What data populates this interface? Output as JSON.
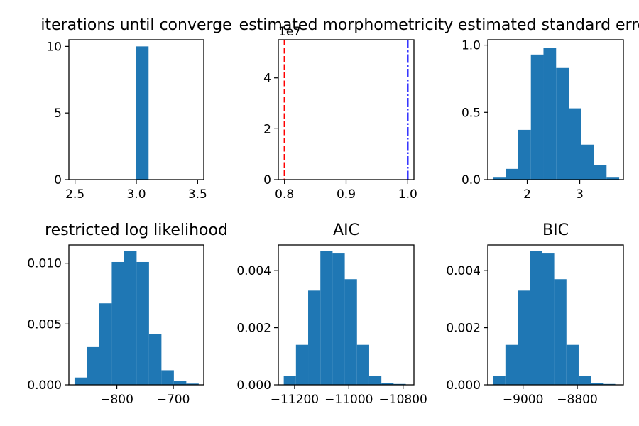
{
  "chart_data": [
    {
      "type": "histogram",
      "title": "iterations until converge",
      "xlim": [
        2.45,
        3.55
      ],
      "ylim": [
        0,
        10.5
      ],
      "xticks": [
        2.5,
        3.0,
        3.5
      ],
      "xtick_labels": [
        "2.5",
        "3.0",
        "3.5"
      ],
      "yticks": [
        0,
        5,
        10
      ],
      "ytick_labels": [
        "0",
        "5",
        "10"
      ],
      "bins": [
        {
          "x0": 3.0,
          "x1": 3.1,
          "value": 10
        }
      ],
      "colors": {
        "bars": "#1f77b4"
      }
    },
    {
      "type": "histogram",
      "title": "estimated morphometricity",
      "xlim": [
        0.79,
        1.01
      ],
      "ylim": [
        0,
        5.5
      ],
      "xticks": [
        0.8,
        0.9,
        1.0
      ],
      "xtick_labels": [
        "0.8",
        "0.9",
        "1.0"
      ],
      "yticks": [
        0,
        2,
        4
      ],
      "ytick_labels": [
        "0",
        "2",
        "4"
      ],
      "y_offset_label": "1e7",
      "bins": [],
      "vlines": [
        {
          "x": 0.8,
          "style": "dashed",
          "color": "#ff0000"
        },
        {
          "x": 1.0,
          "style": "dashdot",
          "color": "#0000ff"
        }
      ]
    },
    {
      "type": "histogram",
      "title": "estimated standard error",
      "xlim": [
        1.25,
        3.83
      ],
      "ylim": [
        0,
        1.04
      ],
      "xticks": [
        2,
        3
      ],
      "xtick_labels": [
        "2",
        "3"
      ],
      "yticks": [
        0.0,
        0.5,
        1.0
      ],
      "ytick_labels": [
        "0.0",
        "0.5",
        "1.0"
      ],
      "bins": [
        {
          "x0": 1.35,
          "x1": 1.59,
          "value": 0.02
        },
        {
          "x0": 1.59,
          "x1": 1.83,
          "value": 0.08
        },
        {
          "x0": 1.83,
          "x1": 2.07,
          "value": 0.37
        },
        {
          "x0": 2.07,
          "x1": 2.31,
          "value": 0.93
        },
        {
          "x0": 2.31,
          "x1": 2.55,
          "value": 0.98
        },
        {
          "x0": 2.55,
          "x1": 2.79,
          "value": 0.83
        },
        {
          "x0": 2.79,
          "x1": 3.03,
          "value": 0.53
        },
        {
          "x0": 3.03,
          "x1": 3.27,
          "value": 0.26
        },
        {
          "x0": 3.27,
          "x1": 3.51,
          "value": 0.11
        },
        {
          "x0": 3.51,
          "x1": 3.75,
          "value": 0.02
        }
      ],
      "colors": {
        "bars": "#1f77b4"
      }
    },
    {
      "type": "histogram",
      "title": "restricted log likelihood",
      "xlim": [
        -885,
        -646
      ],
      "ylim": [
        0,
        0.0115
      ],
      "xticks": [
        -800,
        -700
      ],
      "xtick_labels": [
        "−800",
        "−700"
      ],
      "yticks": [
        0.0,
        0.005,
        0.01
      ],
      "ytick_labels": [
        "0.000",
        "0.005",
        "0.010"
      ],
      "bins": [
        {
          "x0": -875,
          "x1": -853,
          "value": 0.0006
        },
        {
          "x0": -853,
          "x1": -831,
          "value": 0.0031
        },
        {
          "x0": -831,
          "x1": -809,
          "value": 0.0067
        },
        {
          "x0": -809,
          "x1": -787,
          "value": 0.0101
        },
        {
          "x0": -787,
          "x1": -765,
          "value": 0.011
        },
        {
          "x0": -765,
          "x1": -743,
          "value": 0.0101
        },
        {
          "x0": -743,
          "x1": -721,
          "value": 0.0042
        },
        {
          "x0": -721,
          "x1": -699,
          "value": 0.0012
        },
        {
          "x0": -699,
          "x1": -677,
          "value": 0.0003
        },
        {
          "x0": -677,
          "x1": -655,
          "value": 0.0001
        }
      ],
      "colors": {
        "bars": "#1f77b4"
      }
    },
    {
      "type": "histogram",
      "title": "AIC",
      "xlim": [
        -11260,
        -10760
      ],
      "ylim": [
        0,
        0.0049
      ],
      "xticks": [
        -11200,
        -11000,
        -10800
      ],
      "xtick_labels": [
        "−11200",
        "−11000",
        "−10800"
      ],
      "yticks": [
        0.0,
        0.002,
        0.004
      ],
      "ytick_labels": [
        "0.000",
        "0.002",
        "0.004"
      ],
      "bins": [
        {
          "x0": -11240,
          "x1": -11195,
          "value": 0.0003
        },
        {
          "x0": -11195,
          "x1": -11150,
          "value": 0.0014
        },
        {
          "x0": -11150,
          "x1": -11105,
          "value": 0.0033
        },
        {
          "x0": -11105,
          "x1": -11060,
          "value": 0.0047
        },
        {
          "x0": -11060,
          "x1": -11015,
          "value": 0.0046
        },
        {
          "x0": -11015,
          "x1": -10970,
          "value": 0.0037
        },
        {
          "x0": -10970,
          "x1": -10925,
          "value": 0.0014
        },
        {
          "x0": -10925,
          "x1": -10880,
          "value": 0.0003
        },
        {
          "x0": -10880,
          "x1": -10835,
          "value": 7e-05
        },
        {
          "x0": -10835,
          "x1": -10790,
          "value": 3e-05
        }
      ],
      "colors": {
        "bars": "#1f77b4"
      }
    },
    {
      "type": "histogram",
      "title": "BIC",
      "xlim": [
        -9130,
        -8630
      ],
      "ylim": [
        0,
        0.0049
      ],
      "xticks": [
        -9000,
        -8800
      ],
      "xtick_labels": [
        "−9000",
        "−8800"
      ],
      "yticks": [
        0.0,
        0.002,
        0.004
      ],
      "ytick_labels": [
        "0.000",
        "0.002",
        "0.004"
      ],
      "bins": [
        {
          "x0": -9110,
          "x1": -9065,
          "value": 0.0003
        },
        {
          "x0": -9065,
          "x1": -9020,
          "value": 0.0014
        },
        {
          "x0": -9020,
          "x1": -8975,
          "value": 0.0033
        },
        {
          "x0": -8975,
          "x1": -8930,
          "value": 0.0047
        },
        {
          "x0": -8930,
          "x1": -8885,
          "value": 0.0046
        },
        {
          "x0": -8885,
          "x1": -8840,
          "value": 0.0037
        },
        {
          "x0": -8840,
          "x1": -8795,
          "value": 0.0014
        },
        {
          "x0": -8795,
          "x1": -8750,
          "value": 0.0003
        },
        {
          "x0": -8750,
          "x1": -8705,
          "value": 7e-05
        },
        {
          "x0": -8705,
          "x1": -8660,
          "value": 3e-05
        }
      ],
      "colors": {
        "bars": "#1f77b4"
      }
    }
  ]
}
